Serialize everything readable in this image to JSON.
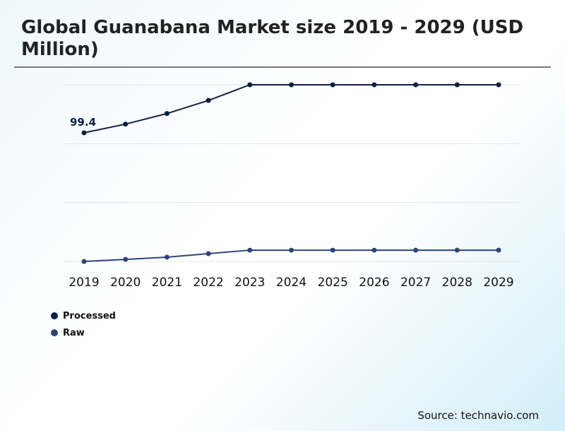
{
  "chart_data": {
    "type": "line",
    "title": "Global Guanabana Market size 2019 - 2029 (USD Million)",
    "categories": [
      "2019",
      "2020",
      "2021",
      "2022",
      "2023",
      "2024",
      "2025",
      "2026",
      "2027",
      "2028",
      "2029"
    ],
    "ylim": [
      0,
      136.5
    ],
    "grid": true,
    "legend_placement": "bottom-left",
    "series": [
      {
        "name": "Processed",
        "color": "#0d1f45",
        "values": [
          99.4,
          106.1,
          114.3,
          124.4,
          136.5,
          136.5,
          136.5,
          136.5,
          136.5,
          136.5,
          136.5
        ]
      },
      {
        "name": "Raw",
        "color": "#2e4479",
        "values": [
          0,
          1.6,
          3.3,
          6.0,
          8.7,
          8.7,
          8.7,
          8.7,
          8.7,
          8.7,
          8.7
        ]
      }
    ],
    "annotations": [
      {
        "series": "Processed",
        "category": "2019",
        "text": "99.4"
      }
    ]
  },
  "source": "Source: technavio.com"
}
